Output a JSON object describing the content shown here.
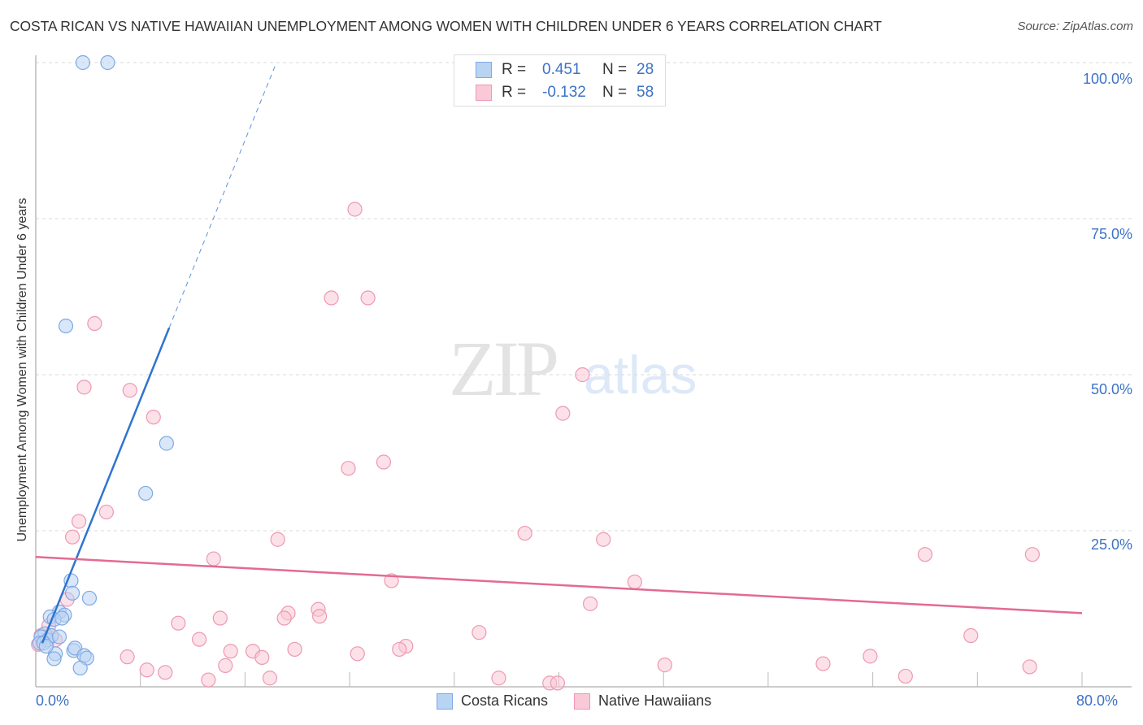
{
  "header": {
    "title": "COSTA RICAN VS NATIVE HAWAIIAN UNEMPLOYMENT AMONG WOMEN WITH CHILDREN UNDER 6 YEARS CORRELATION CHART",
    "source": "Source: ZipAtlas.com"
  },
  "watermark": {
    "zip": "ZIP",
    "atlas": "atlas"
  },
  "legend": {
    "rows": [
      {
        "r_label": "R =",
        "r_value": "0.451",
        "n_label": "N =",
        "n_value": "28",
        "fill": "#b9d3f3",
        "stroke": "#7ea9e6"
      },
      {
        "r_label": "R =",
        "r_value": "-0.132",
        "n_label": "N =",
        "n_value": "58",
        "fill": "#f9c9d7",
        "stroke": "#ee98b2"
      }
    ]
  },
  "bottom_legend": [
    {
      "label": "Costa Ricans",
      "fill": "#b9d3f3",
      "stroke": "#7ea9e6"
    },
    {
      "label": "Native Hawaiians",
      "fill": "#f9c9d7",
      "stroke": "#ee98b2"
    }
  ],
  "axes": {
    "ylabel": "Unemployment Among Women with Children Under 6 years",
    "y_ticks": [
      "100.0%",
      "75.0%",
      "50.0%",
      "25.0%"
    ],
    "x_left": "0.0%",
    "x_right": "80.0%"
  },
  "chart_data": {
    "type": "scatter",
    "title": "COSTA RICAN VS NATIVE HAWAIIAN UNEMPLOYMENT AMONG WOMEN WITH CHILDREN UNDER 6 YEARS CORRELATION CHART",
    "xlabel": "",
    "ylabel": "Unemployment Among Women with Children Under 6 years",
    "xlim": [
      0,
      80
    ],
    "ylim": [
      0,
      100
    ],
    "grid": true,
    "legend_position": "top-center",
    "series": [
      {
        "name": "Costa Ricans",
        "color": "#7ea9e6",
        "R": 0.451,
        "N": 28,
        "trend": {
          "x0": 0.5,
          "y0": 7.0,
          "x1": 10.2,
          "y1": 57.5,
          "dashed_to": {
            "x": 18.4,
            "y": 100
          }
        },
        "points": [
          [
            3.6,
            100
          ],
          [
            5.5,
            100
          ],
          [
            2.3,
            57.8
          ],
          [
            10.0,
            39.0
          ],
          [
            8.4,
            31.0
          ],
          [
            2.7,
            17.0
          ],
          [
            4.1,
            14.2
          ],
          [
            2.8,
            15.0
          ],
          [
            1.8,
            12.0
          ],
          [
            2.2,
            11.5
          ],
          [
            1.1,
            11.2
          ],
          [
            1.4,
            10.8
          ],
          [
            2.0,
            11.0
          ],
          [
            0.7,
            8.5
          ],
          [
            0.4,
            8.0
          ],
          [
            0.9,
            7.5
          ],
          [
            1.2,
            8.2
          ],
          [
            0.3,
            7.0
          ],
          [
            0.6,
            7.0
          ],
          [
            1.8,
            8.0
          ],
          [
            1.5,
            5.3
          ],
          [
            1.4,
            4.5
          ],
          [
            2.9,
            5.8
          ],
          [
            3.0,
            6.2
          ],
          [
            3.7,
            5.0
          ],
          [
            3.9,
            4.6
          ],
          [
            3.4,
            3.0
          ],
          [
            0.8,
            6.5
          ]
        ]
      },
      {
        "name": "Native Hawaiians",
        "color": "#ee98b2",
        "R": -0.132,
        "N": 58,
        "trend": {
          "x0": 0,
          "y0": 20.8,
          "x1": 80,
          "y1": 11.8
        },
        "points": [
          [
            24.4,
            76.5
          ],
          [
            22.6,
            62.3
          ],
          [
            25.4,
            62.3
          ],
          [
            4.5,
            58.2
          ],
          [
            3.7,
            48.0
          ],
          [
            7.2,
            47.5
          ],
          [
            9.0,
            43.2
          ],
          [
            41.8,
            50.0
          ],
          [
            40.3,
            43.8
          ],
          [
            23.9,
            35.0
          ],
          [
            26.6,
            36.0
          ],
          [
            3.3,
            26.5
          ],
          [
            5.4,
            28.0
          ],
          [
            2.8,
            24.0
          ],
          [
            18.5,
            23.6
          ],
          [
            37.4,
            24.6
          ],
          [
            43.4,
            23.6
          ],
          [
            13.6,
            20.5
          ],
          [
            27.2,
            17.0
          ],
          [
            45.8,
            16.8
          ],
          [
            68.0,
            21.2
          ],
          [
            76.2,
            21.2
          ],
          [
            2.4,
            14.0
          ],
          [
            42.4,
            13.3
          ],
          [
            21.6,
            12.4
          ],
          [
            19.3,
            11.8
          ],
          [
            19.0,
            11.0
          ],
          [
            21.7,
            11.3
          ],
          [
            14.1,
            11.0
          ],
          [
            10.9,
            10.2
          ],
          [
            33.9,
            8.7
          ],
          [
            12.5,
            7.6
          ],
          [
            71.5,
            8.2
          ],
          [
            1.0,
            9.8
          ],
          [
            0.4,
            8.2
          ],
          [
            28.3,
            6.5
          ],
          [
            19.8,
            6.0
          ],
          [
            14.9,
            5.7
          ],
          [
            16.6,
            5.7
          ],
          [
            24.6,
            5.3
          ],
          [
            27.8,
            6.0
          ],
          [
            7.0,
            4.8
          ],
          [
            17.3,
            4.7
          ],
          [
            63.8,
            4.9
          ],
          [
            60.2,
            3.7
          ],
          [
            76.0,
            3.2
          ],
          [
            8.5,
            2.7
          ],
          [
            9.9,
            2.3
          ],
          [
            14.5,
            3.4
          ],
          [
            13.2,
            1.1
          ],
          [
            17.9,
            1.4
          ],
          [
            35.4,
            1.4
          ],
          [
            39.3,
            0.6
          ],
          [
            39.9,
            0.6
          ],
          [
            48.1,
            3.5
          ],
          [
            66.5,
            1.7
          ],
          [
            0.2,
            6.8
          ],
          [
            1.5,
            7.5
          ]
        ]
      }
    ]
  }
}
